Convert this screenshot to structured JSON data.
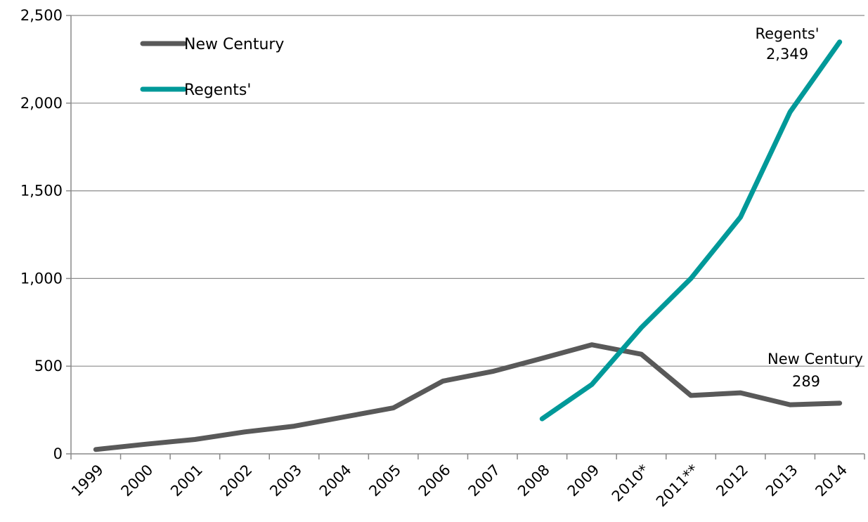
{
  "chart_data": {
    "type": "line",
    "categories": [
      "1999",
      "2000",
      "2001",
      "2002",
      "2003",
      "2004",
      "2005",
      "2006",
      "2007",
      "2008",
      "2009",
      "2010*",
      "2011**",
      "2012",
      "2013",
      "2014"
    ],
    "series": [
      {
        "name": "New Century",
        "color": "#595959",
        "values": [
          25,
          55,
          82,
          125,
          158,
          210,
          262,
          415,
          470,
          545,
          622,
          568,
          333,
          348,
          280,
          289
        ]
      },
      {
        "name": "Regents'",
        "color": "#009999",
        "values": [
          null,
          null,
          null,
          null,
          null,
          null,
          null,
          null,
          null,
          200,
          395,
          720,
          1000,
          1350,
          1950,
          2349
        ]
      }
    ],
    "ylim": [
      0,
      2500
    ],
    "yticks": [
      0,
      500,
      1000,
      1500,
      2000,
      2500
    ],
    "ytick_labels": [
      "0",
      "500",
      "1,000",
      "1,500",
      "2,000",
      "2,500"
    ],
    "grid": "horizontal",
    "legend_position": "top-left",
    "annotations": [
      {
        "series": "Regents'",
        "line1": "Regents'",
        "line2": "2,349"
      },
      {
        "series": "New Century",
        "line1": "New Century",
        "line2": "289"
      }
    ],
    "title": "",
    "xlabel": "",
    "ylabel": ""
  }
}
